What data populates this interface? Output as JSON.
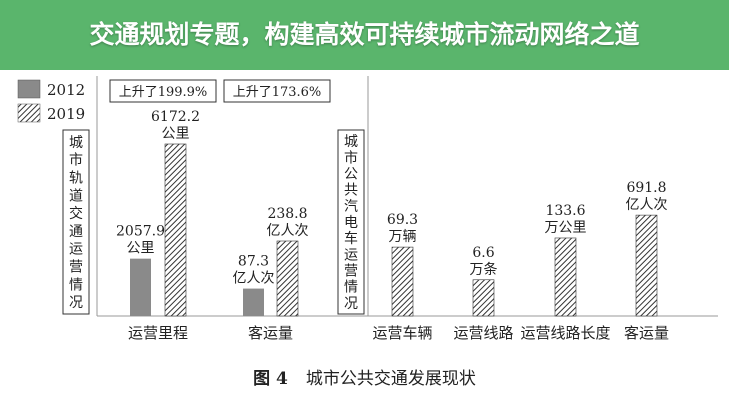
{
  "chart_data": {
    "type": "bar",
    "caption_no": "图 4",
    "caption": "城市公共交通发展现状",
    "legend": [
      "2012",
      "2019"
    ],
    "legend_placement": "top-left",
    "series_colors": {
      "2012": "#8a8a8a",
      "2019": "hatched"
    },
    "groups": [
      {
        "label": "城市轨道交通运营情况",
        "categories": [
          {
            "name": "运营里程",
            "values": [
              2057.9,
              6172.2
            ],
            "unit": "公里",
            "change": "上升了199.9%"
          },
          {
            "name": "客运量",
            "values": [
              87.3,
              238.8
            ],
            "unit": "亿人次",
            "change": "上升了173.6%"
          }
        ]
      },
      {
        "label": "城市公共汽电车运营情况",
        "categories": [
          {
            "name": "运营车辆",
            "value": 69.3,
            "unit": "万辆"
          },
          {
            "name": "运营线路",
            "value": 6.6,
            "unit": "万条"
          },
          {
            "name": "运营线路长度",
            "value": 133.6,
            "unit": "万公里"
          },
          {
            "name": "客运量",
            "value": 691.8,
            "unit": "亿人次"
          }
        ]
      }
    ]
  },
  "banner": {
    "title": "交通规划专题，构建高效可持续城市流动网络之道",
    "color": "#4caf60"
  }
}
